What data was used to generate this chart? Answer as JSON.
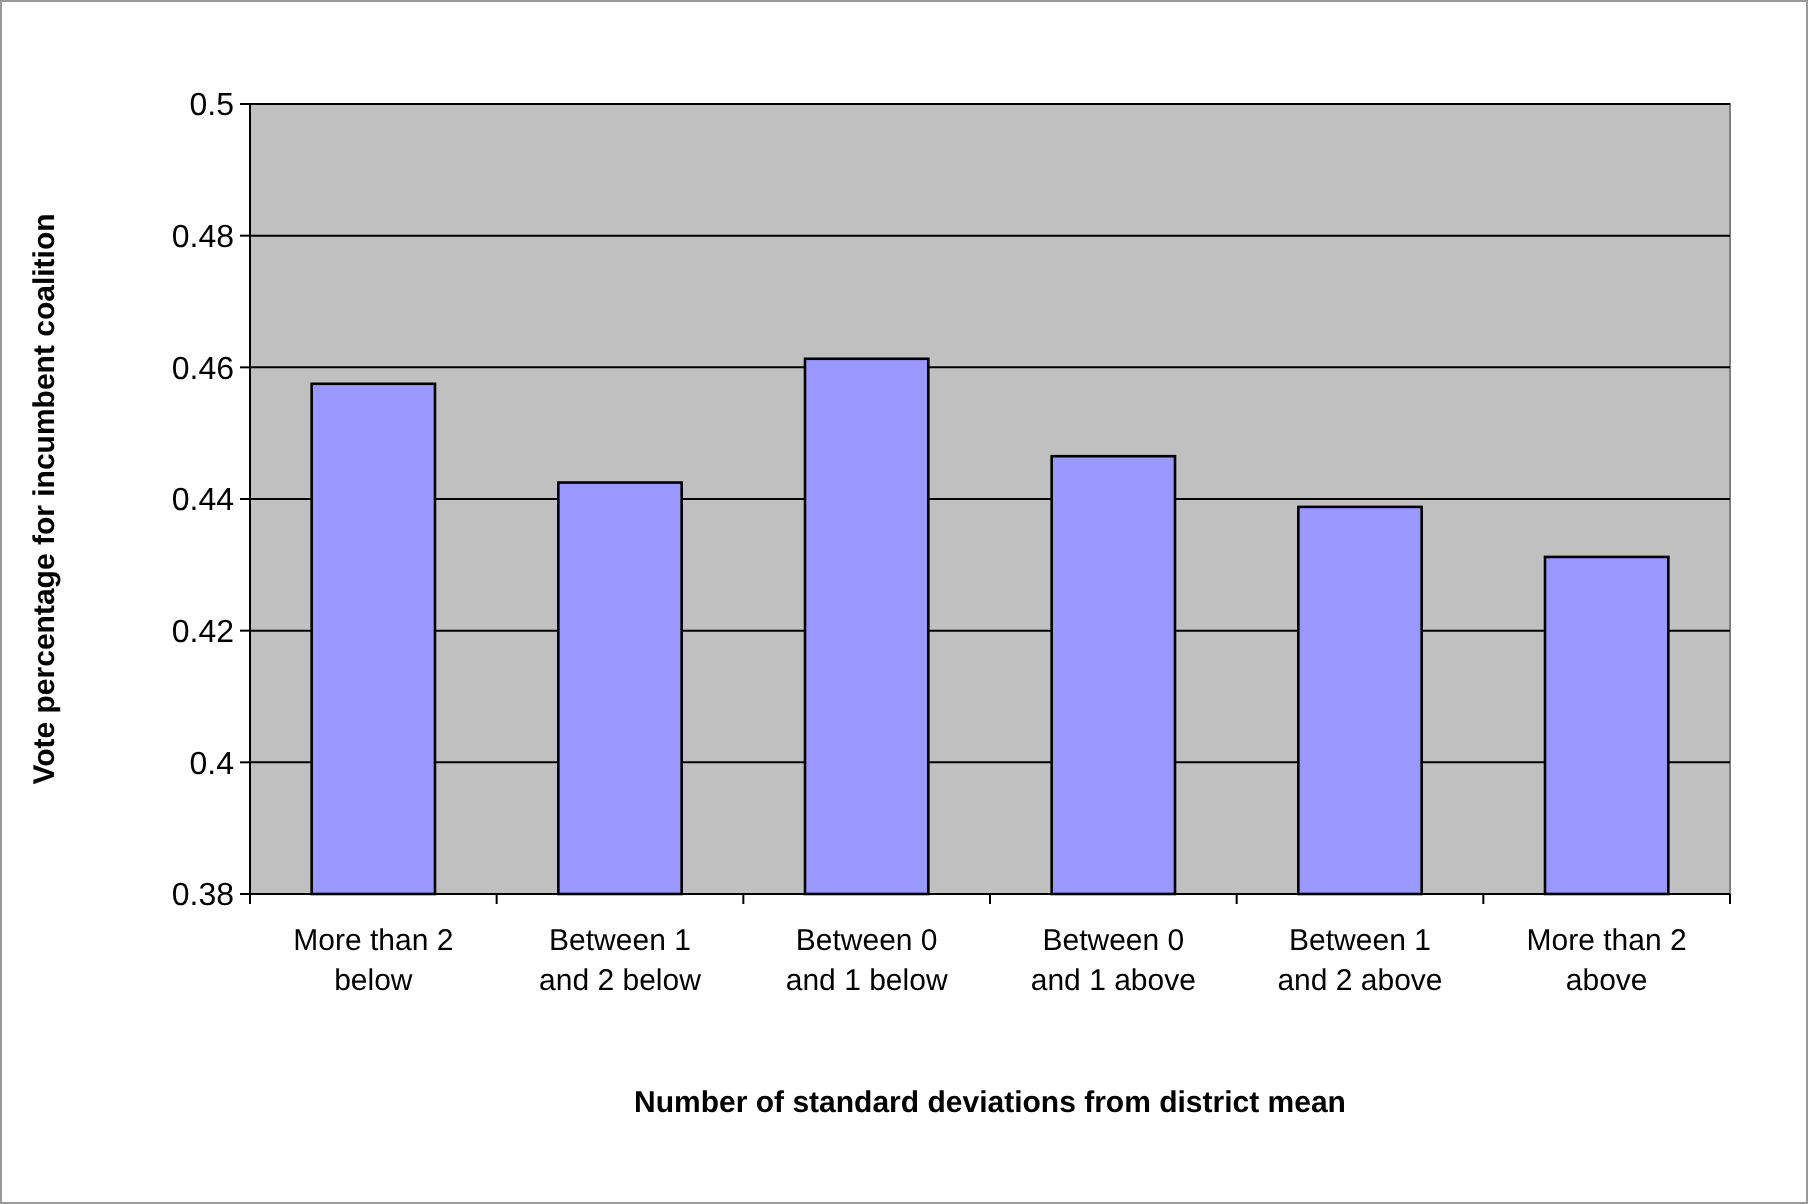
{
  "chart_data": {
    "type": "bar",
    "xlabel": "Number of standard deviations from district mean",
    "ylabel": "Vote percentage for incumbent coalition",
    "categories": [
      "More than 2 below",
      "Between 1 and 2 below",
      "Between 0 and 1 below",
      "Between 0 and 1 above",
      "Between 1 and 2 above",
      "More than 2 above"
    ],
    "values": [
      0.4575,
      0.4425,
      0.4613,
      0.4465,
      0.4388,
      0.4312
    ],
    "color": "#9999ff",
    "ylim": [
      0.38,
      0.5
    ],
    "yticks": [
      0.38,
      0.4,
      0.42,
      0.44,
      0.46,
      0.48,
      0.5
    ],
    "grid": "y"
  }
}
